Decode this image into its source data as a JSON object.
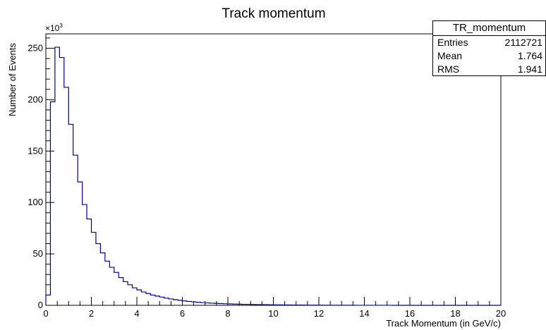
{
  "chart_data": {
    "type": "bar",
    "title": "Track momentum",
    "xlabel": "Track Momentum (in GeV/c)",
    "ylabel": "Number of Events",
    "y_multiplier_label": "×10",
    "y_multiplier_exp": "3",
    "xlim": [
      0,
      20
    ],
    "ylim": [
      0,
      264
    ],
    "xticks": [
      0,
      2,
      4,
      6,
      8,
      10,
      12,
      14,
      16,
      18,
      20
    ],
    "yticks": [
      0,
      50,
      100,
      150,
      200,
      250
    ],
    "bin_width": 0.2,
    "values": [
      10,
      198,
      251,
      241,
      212,
      176,
      146,
      120,
      98,
      84,
      71,
      60,
      51,
      43,
      37,
      32,
      27,
      23,
      20,
      17,
      15,
      13,
      11.5,
      10,
      9,
      8,
      7,
      6.2,
      5.5,
      4.9,
      4.3,
      3.8,
      3.4,
      3.0,
      2.7,
      2.4,
      2.1,
      1.9,
      1.7,
      1.5,
      1.35,
      1.2,
      1.1,
      1.0,
      0.9,
      0.8,
      0.72,
      0.65,
      0.58,
      0.52,
      0.47,
      0.42,
      0.38,
      0.34,
      0.31,
      0.28,
      0.25,
      0.22,
      0.2,
      0.18,
      0.16,
      0.14,
      0.13,
      0.12,
      0.1,
      0.09,
      0.08,
      0.07,
      0.06,
      0.05,
      0.05,
      0.04,
      0.04,
      0.03,
      0.03,
      0.03,
      0.02,
      0.02,
      0.02,
      0.02,
      0.01,
      0.01,
      0.01,
      0.01,
      0.01,
      0.01,
      0.01,
      0.01,
      0.01,
      0.01,
      0.01,
      0.01,
      0.01,
      0.01,
      0.01,
      0.01,
      0.01,
      0.01,
      0.01,
      0.01
    ],
    "line_color": "#00008b",
    "stats": {
      "name": "TR_momentum",
      "rows": [
        {
          "label": "Entries",
          "value": "2112721"
        },
        {
          "label": "Mean",
          "value": "1.764"
        },
        {
          "label": "RMS",
          "value": "1.941"
        }
      ]
    }
  }
}
